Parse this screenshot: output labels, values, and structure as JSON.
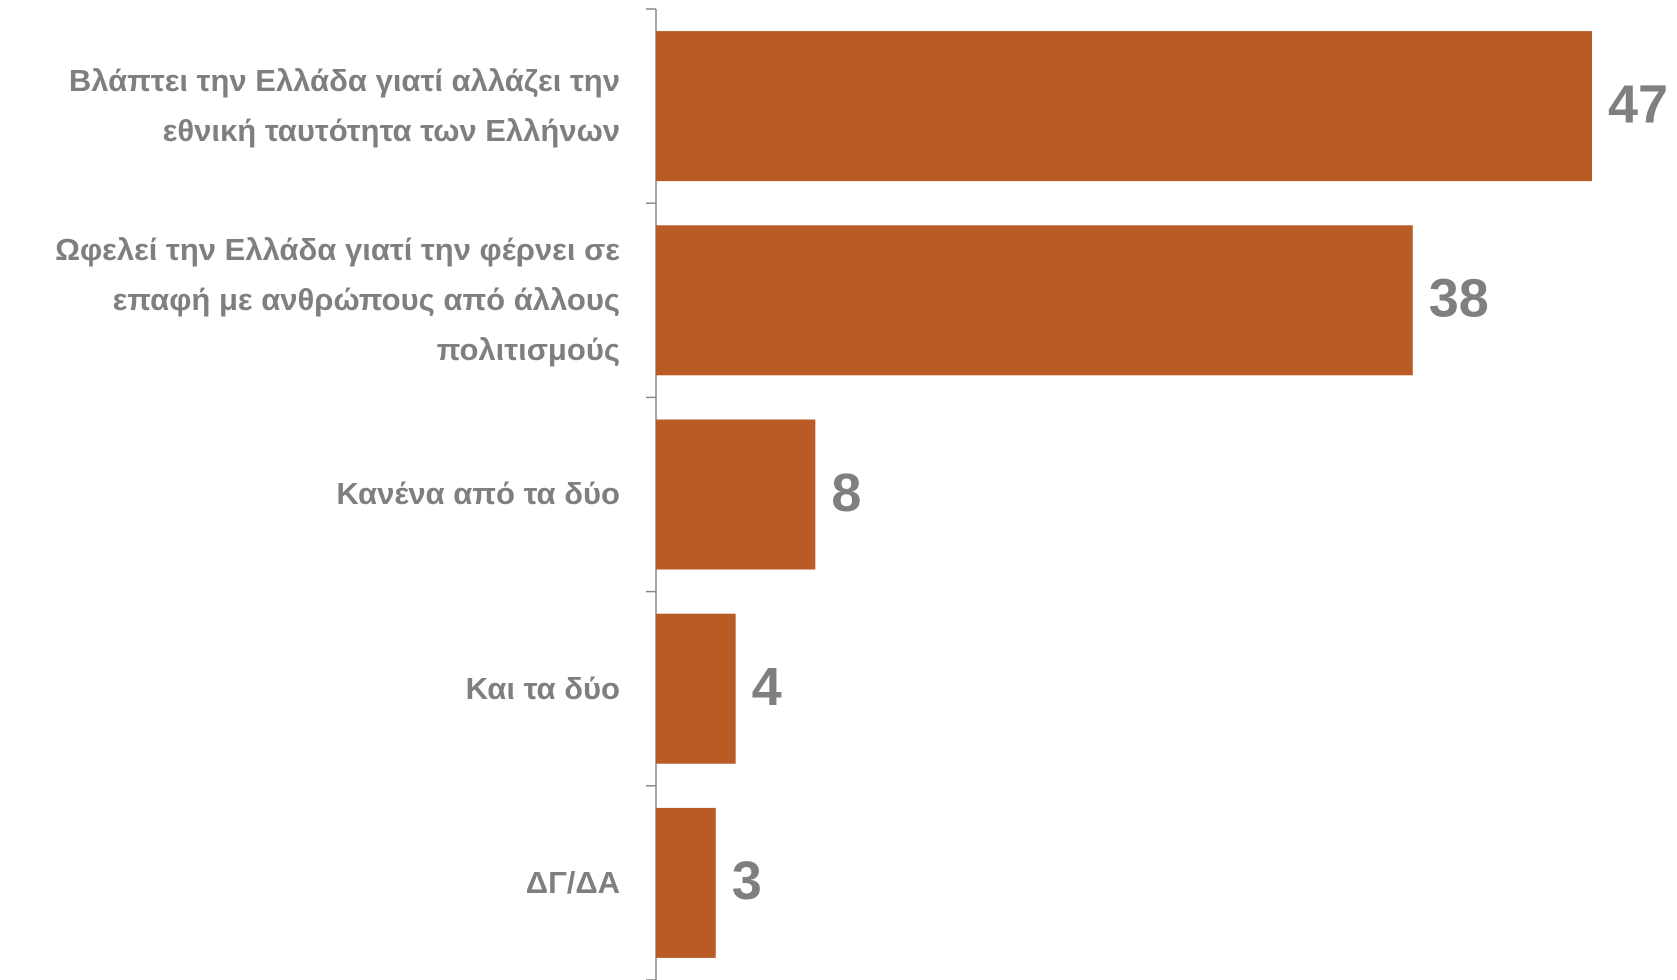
{
  "chart_data": {
    "type": "hbar",
    "categories": [
      "Βλάπτει την Ελλάδα γιατί αλλάζει την εθνική ταυτότητα των Ελλήνων",
      "Ωφελεί την Ελλάδα γιατί την φέρνει σε επαφή με ανθρώπους από άλλους πολιτισμούς",
      "Κανένα από τα δύο",
      "Και τα δύο",
      "ΔΓ/ΔΑ"
    ],
    "values": [
      47,
      38,
      8,
      4,
      3
    ],
    "color": "#b85b24"
  }
}
